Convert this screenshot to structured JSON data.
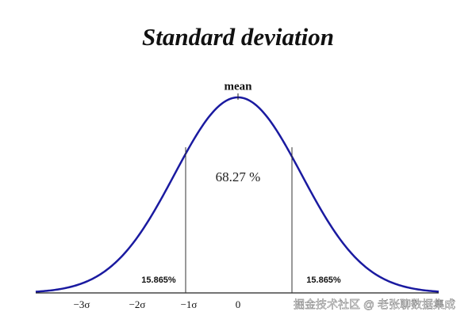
{
  "title": "Standard deviation",
  "peak_label": "mean",
  "center_label": "68.27 %",
  "tail_labels": [
    "15.865%",
    "15.865%"
  ],
  "axis_labels": [
    "−3σ",
    "−2σ",
    "−1σ",
    "0"
  ],
  "watermark": "掘金技术社区 @ 老张聊数据集成"
}
